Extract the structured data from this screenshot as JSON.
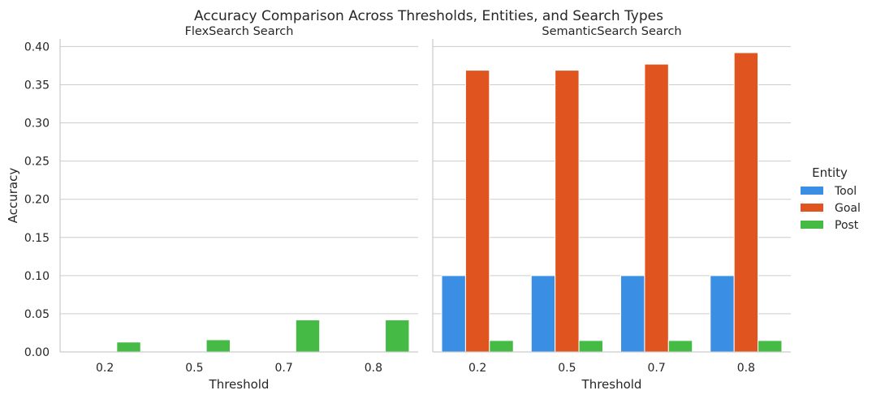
{
  "chart_data": {
    "type": "bar",
    "title": "Accuracy Comparison Across Thresholds, Entities, and Search Types",
    "ylabel": "Accuracy",
    "xlabel": "Threshold",
    "ylim": [
      0,
      0.41
    ],
    "yticks": [
      "0.00",
      "0.05",
      "0.10",
      "0.15",
      "0.20",
      "0.25",
      "0.30",
      "0.35",
      "0.40"
    ],
    "categories": [
      "0.2",
      "0.5",
      "0.7",
      "0.8"
    ],
    "grid": true,
    "legend": {
      "title": "Entity",
      "placement": "right",
      "entries": [
        "Tool",
        "Goal",
        "Post"
      ]
    },
    "colors": {
      "Tool": "#3a8fe4",
      "Goal": "#e05420",
      "Post": "#45bb45"
    },
    "panels": [
      {
        "title": "FlexSearch Search",
        "series": [
          {
            "name": "Tool",
            "values": [
              0,
              0,
              0,
              0
            ]
          },
          {
            "name": "Goal",
            "values": [
              0,
              0,
              0,
              0
            ]
          },
          {
            "name": "Post",
            "values": [
              0.013,
              0.016,
              0.042,
              0.042
            ]
          }
        ]
      },
      {
        "title": "SemanticSearch Search",
        "series": [
          {
            "name": "Tool",
            "values": [
              0.1,
              0.1,
              0.1,
              0.1
            ]
          },
          {
            "name": "Goal",
            "values": [
              0.369,
              0.369,
              0.377,
              0.392
            ]
          },
          {
            "name": "Post",
            "values": [
              0.015,
              0.015,
              0.015,
              0.015
            ]
          }
        ]
      }
    ]
  }
}
